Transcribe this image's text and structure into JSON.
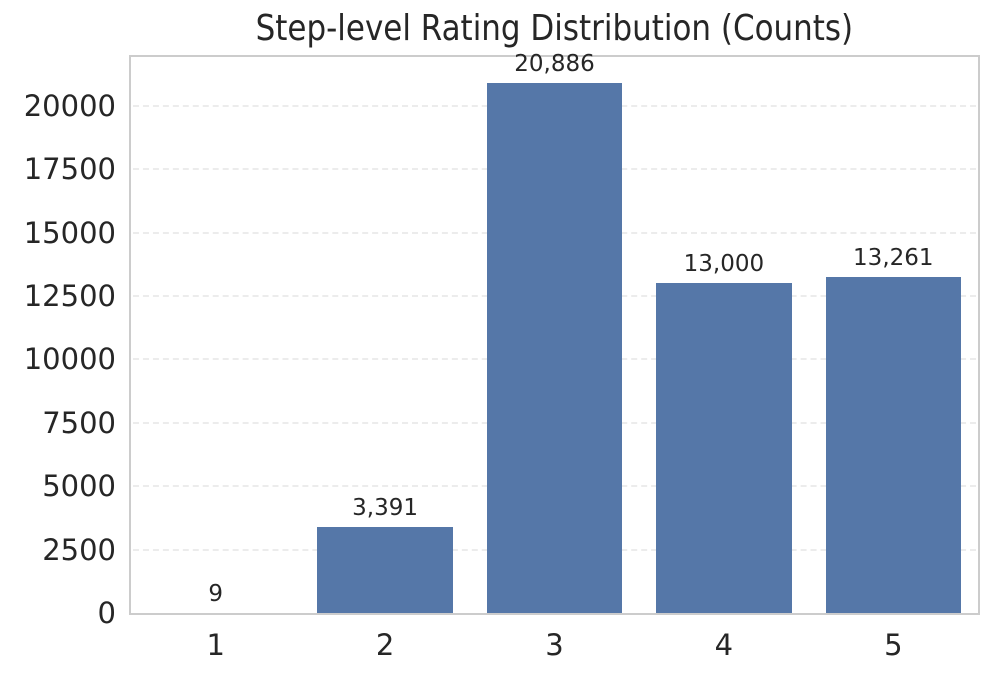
{
  "chart_data": {
    "type": "bar",
    "title": "Step-level Rating Distribution (Counts)",
    "categories": [
      "1",
      "2",
      "3",
      "4",
      "5"
    ],
    "values": [
      9,
      3391,
      20886,
      13000,
      13261
    ],
    "bar_labels": [
      "9",
      "3,391",
      "20,886",
      "13,000",
      "13,261"
    ],
    "xlabel": "",
    "ylabel": "",
    "y_ticks": [
      0,
      2500,
      5000,
      7500,
      10000,
      12500,
      15000,
      17500,
      20000
    ],
    "ylim": [
      0,
      21930
    ],
    "grid": "horizontal-dashed",
    "legend": null,
    "colors": {
      "bar": "#5577a8",
      "grid": "#ececec",
      "spine": "#cccccc",
      "text": "#262626",
      "background": "#ffffff"
    }
  }
}
